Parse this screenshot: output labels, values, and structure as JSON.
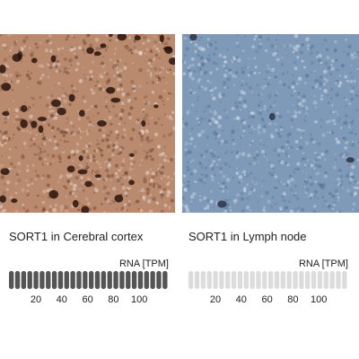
{
  "panels": [
    {
      "tissue_label": "SORT1 in Cerebral cortex",
      "rna_label": "RNA [TPM]",
      "ticks": [
        "20",
        "40",
        "60",
        "80",
        "100"
      ],
      "bar_color": "#555555",
      "image_base": "#b98a6e",
      "image_spot": "#4a2414"
    },
    {
      "tissue_label": "SORT1 in Lymph node",
      "rna_label": "RNA [TPM]",
      "ticks": [
        "20",
        "40",
        "60",
        "80",
        "100"
      ],
      "bar_color": "#dcdcdc",
      "image_base": "#7f9ab8",
      "image_spot": "#3f5c82"
    }
  ]
}
